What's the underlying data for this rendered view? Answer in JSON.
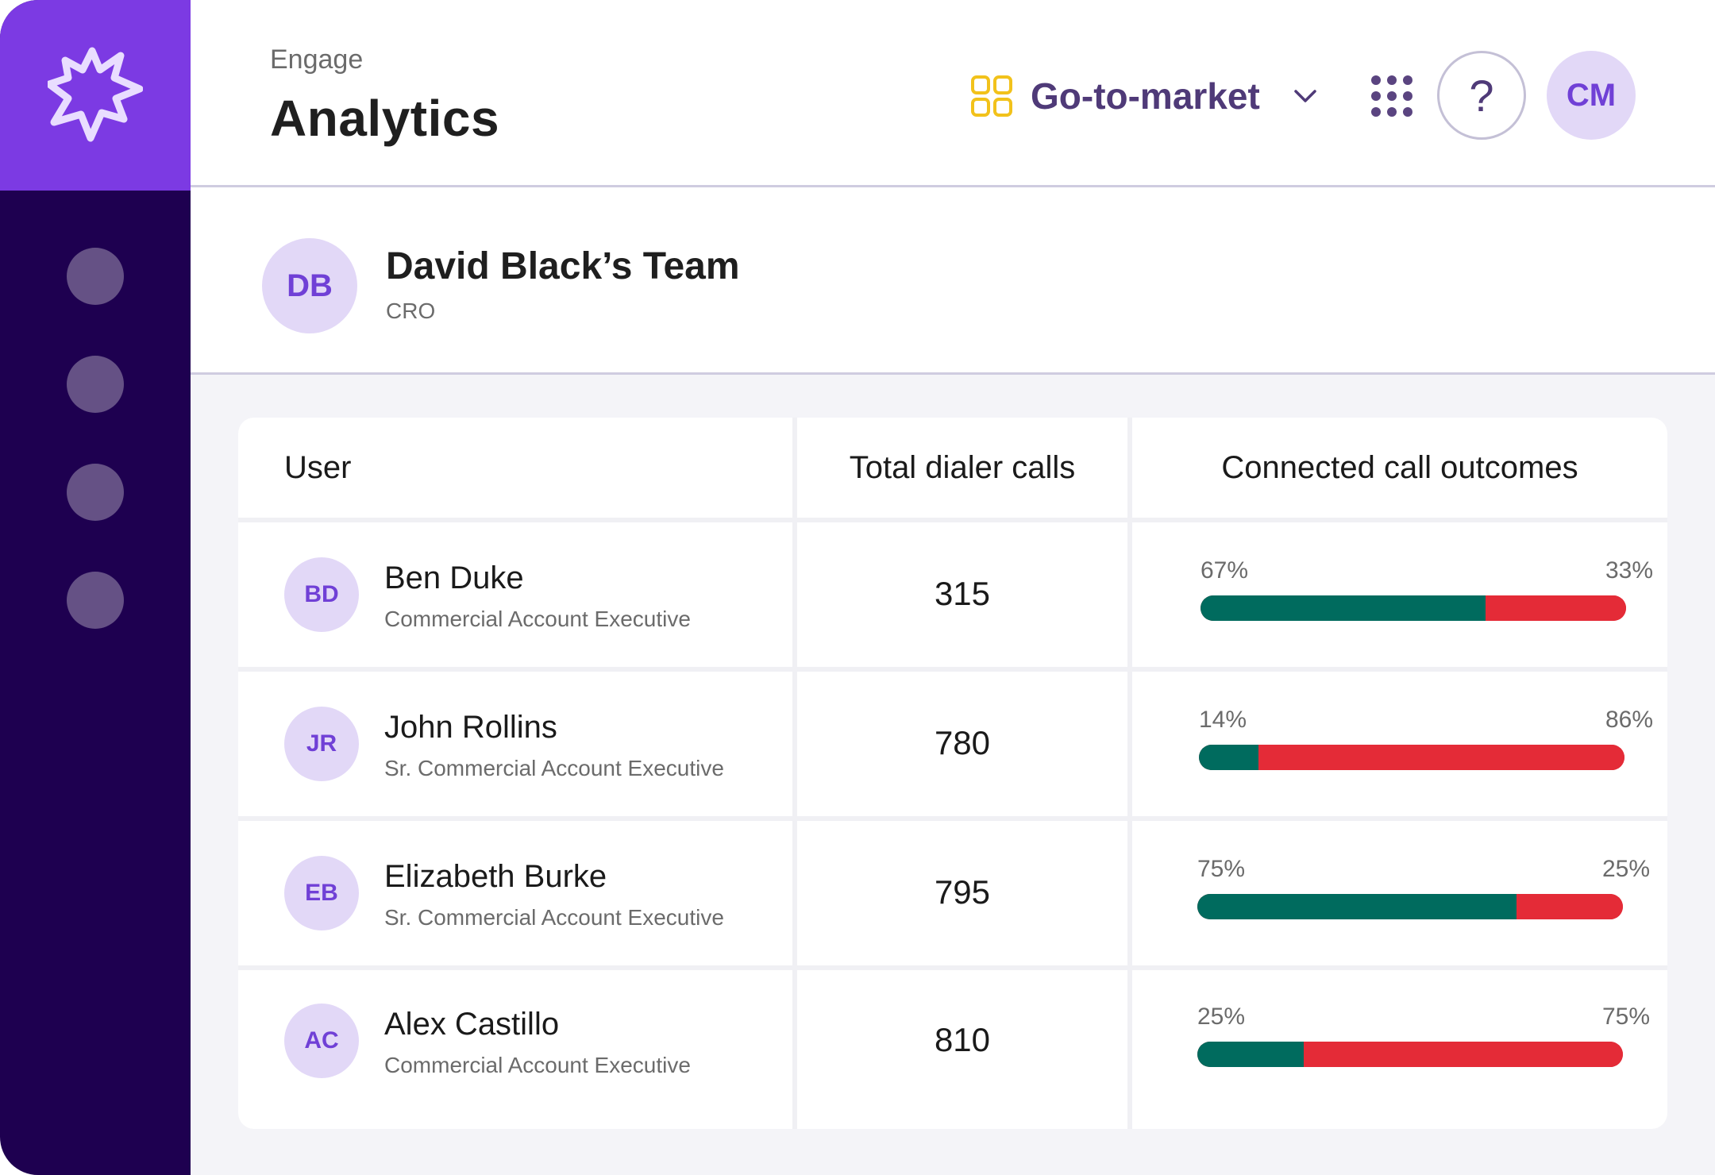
{
  "header": {
    "breadcrumb": "Engage",
    "title": "Analytics",
    "workspace_label": "Go-to-market",
    "help_symbol": "?",
    "user_initials": "CM"
  },
  "team": {
    "initials": "DB",
    "name": "David Black’s Team",
    "role": "CRO"
  },
  "table": {
    "columns": [
      "User",
      "Total dialer calls",
      "Connected call outcomes"
    ],
    "rows": [
      {
        "initials": "BD",
        "name": "Ben Duke",
        "title": "Commercial Account Executive",
        "calls": "315",
        "positive_pct": "67%",
        "negative_pct": "33%",
        "positive_value": 67
      },
      {
        "initials": "JR",
        "name": "John Rollins",
        "title": "Sr. Commercial Account Executive",
        "calls": "780",
        "positive_pct": "14%",
        "negative_pct": "86%",
        "positive_value": 14
      },
      {
        "initials": "EB",
        "name": "Elizabeth Burke",
        "title": "Sr. Commercial Account Executive",
        "calls": "795",
        "positive_pct": "75%",
        "negative_pct": "25%",
        "positive_value": 75
      },
      {
        "initials": "AC",
        "name": "Alex Castillo",
        "title": "Commercial Account Executive",
        "calls": "810",
        "positive_pct": "25%",
        "negative_pct": "75%",
        "positive_value": 25
      }
    ]
  },
  "colors": {
    "sidebar_bg": "#1e0050",
    "logo_bg": "#7c3ae3",
    "accent_purple": "#7040d6",
    "avatar_bg": "#e2d8f7",
    "positive": "#006b5e",
    "negative": "#e42b37",
    "workspace_icon": "#f2c21b"
  },
  "icons": {
    "logo": "starburst-logo-icon",
    "workspace": "four-squares-icon",
    "chevron": "chevron-down-icon",
    "apps": "apps-grid-icon"
  }
}
